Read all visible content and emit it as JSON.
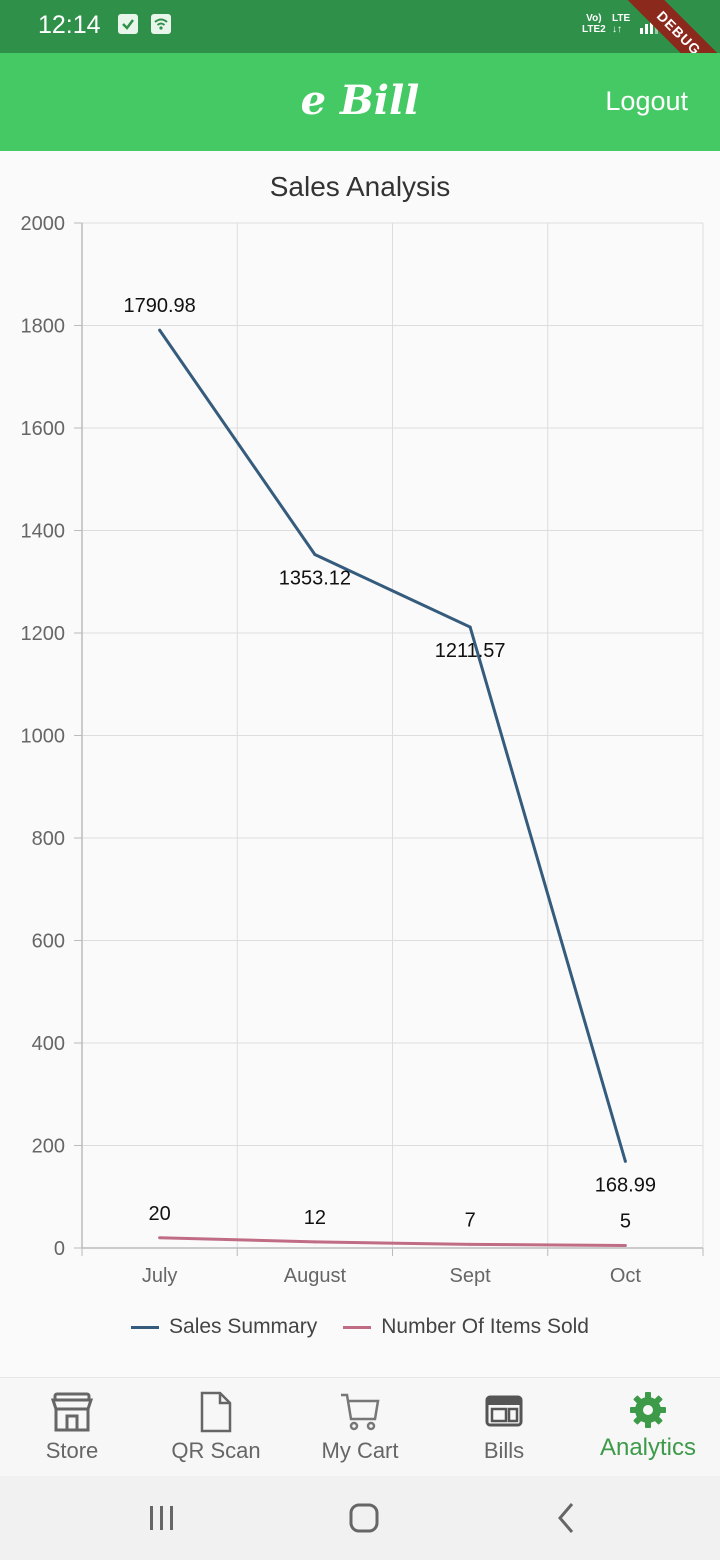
{
  "status_bar": {
    "time": "12:14",
    "network_label_1": "Vo)",
    "network_label_2": "LTE2",
    "lte_label": "LTE",
    "debug_banner": "DEBUG"
  },
  "app_bar": {
    "title": "e Bill",
    "logout_label": "Logout",
    "color": "#45c965"
  },
  "chart_data": {
    "type": "line",
    "title": "Sales Analysis",
    "categories": [
      "July",
      "August",
      "Sept",
      "Oct"
    ],
    "ylim": [
      0,
      2000
    ],
    "y_ticks": [
      "0",
      "200",
      "400",
      "600",
      "800",
      "1000",
      "1200",
      "1400",
      "1600",
      "1800",
      "2000"
    ],
    "grid": true,
    "legend_position": "bottom",
    "series": [
      {
        "name": "Sales Summary",
        "values": [
          1790.98,
          1353.12,
          1211.57,
          168.99
        ],
        "labels": [
          "1790.98",
          "1353.12",
          "1211.57",
          "168.99"
        ],
        "color": "#355c7d"
      },
      {
        "name": "Number Of Items Sold",
        "values": [
          20,
          12,
          7,
          5
        ],
        "labels": [
          "20",
          "12",
          "7",
          "5"
        ],
        "color": "#c06c84"
      }
    ]
  },
  "bottom_nav": {
    "items": [
      {
        "label": "Store",
        "icon": "store-icon"
      },
      {
        "label": "QR Scan",
        "icon": "file-icon"
      },
      {
        "label": "My Cart",
        "icon": "cart-icon"
      },
      {
        "label": "Bills",
        "icon": "bills-icon"
      },
      {
        "label": "Analytics",
        "icon": "gear-icon"
      }
    ],
    "active": "Analytics",
    "active_color": "#3d9a49"
  },
  "system_nav": {
    "buttons": [
      "recent-apps",
      "home",
      "back"
    ]
  }
}
